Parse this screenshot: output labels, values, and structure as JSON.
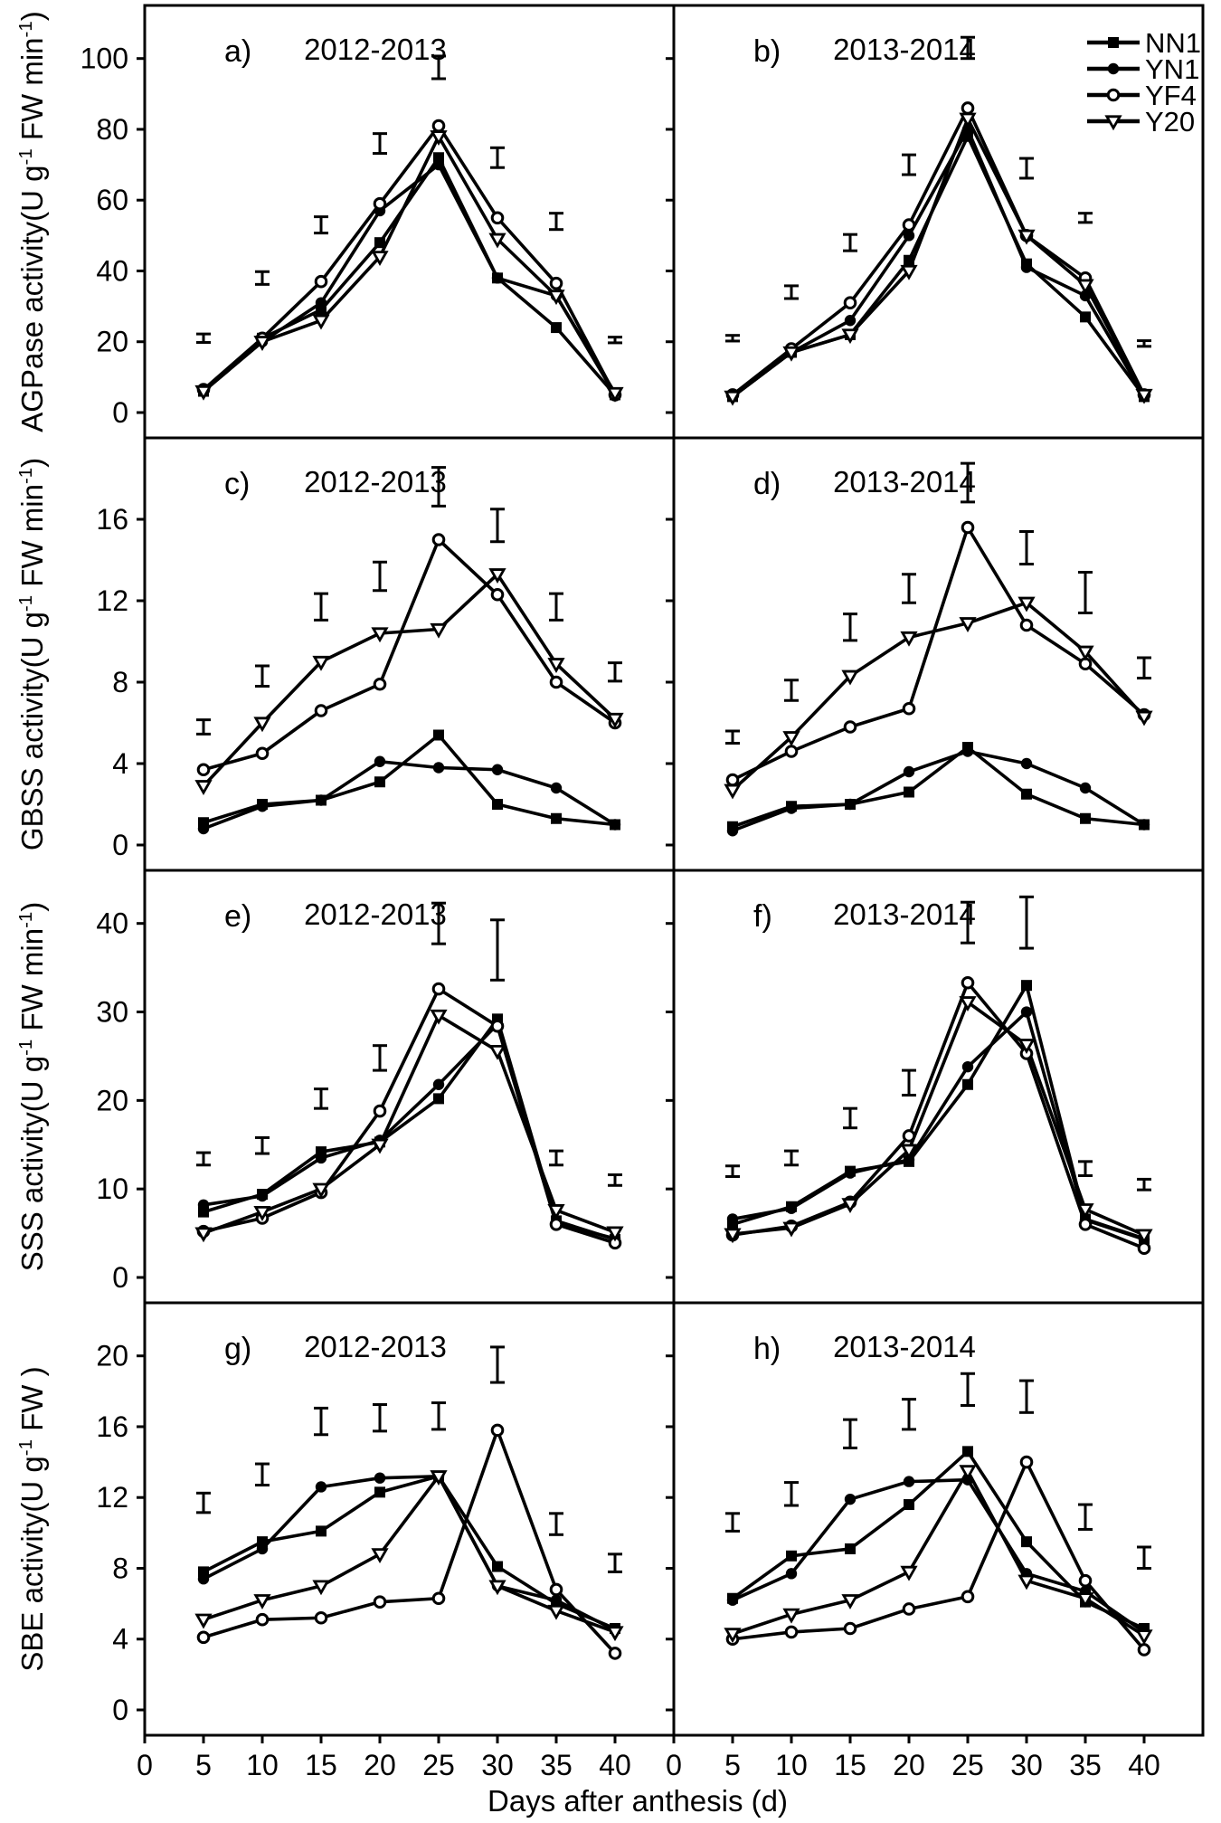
{
  "colors": {
    "foreground": "#000000",
    "background": "#ffffff"
  },
  "figure": {
    "x_axis_title": "Days after anthesis (d)",
    "x_ticks": [
      0,
      5,
      10,
      15,
      20,
      25,
      30,
      35,
      40
    ],
    "y_axis_titles": [
      {
        "row": 0,
        "segments": [
          {
            "t": "AGPase activity(U g"
          },
          {
            "sup": "-1"
          },
          {
            "t": " FW min"
          },
          {
            "sup": "-1"
          },
          {
            "t": ")"
          }
        ]
      },
      {
        "row": 1,
        "segments": [
          {
            "t": "GBSS activity(U g"
          },
          {
            "sup": "-1"
          },
          {
            "t": " FW min"
          },
          {
            "sup": "-1"
          },
          {
            "t": ")"
          }
        ]
      },
      {
        "row": 2,
        "segments": [
          {
            "t": "SSS activity(U g"
          },
          {
            "sup": "-1"
          },
          {
            "t": " FW min"
          },
          {
            "sup": "-1"
          },
          {
            "t": ")"
          }
        ]
      },
      {
        "row": 3,
        "segments": [
          {
            "t": "SBE activity(U g"
          },
          {
            "sup": "-1"
          },
          {
            "t": " FW )"
          }
        ]
      }
    ]
  },
  "legend": {
    "position": "top-right-of-panel-b",
    "items": [
      {
        "label": "NN1",
        "marker": "filled-square"
      },
      {
        "label": "YN1",
        "marker": "filled-circle"
      },
      {
        "label": "YF4",
        "marker": "open-circle"
      },
      {
        "label": "Y20",
        "marker": "open-triangle"
      }
    ]
  },
  "chart_data": [
    {
      "type": "line",
      "panel_label": "a)",
      "season": "2012-2013",
      "enzyme": "AGPase",
      "x": [
        5,
        10,
        15,
        20,
        25,
        30,
        35,
        40
      ],
      "ylim": [
        0,
        115
      ],
      "yticks": [
        0,
        20,
        40,
        60,
        80,
        100
      ],
      "series": [
        {
          "name": "NN1",
          "marker": "filled-square",
          "values": [
            6,
            21,
            29,
            48,
            72,
            38,
            24,
            5
          ]
        },
        {
          "name": "YN1",
          "marker": "filled-circle",
          "values": [
            6,
            20,
            31,
            57,
            70,
            38,
            33,
            5
          ]
        },
        {
          "name": "YF4",
          "marker": "open-circle",
          "values": [
            6.5,
            21,
            37,
            59,
            81,
            55,
            36.5,
            5
          ]
        },
        {
          "name": "Y20",
          "marker": "open-triangle",
          "values": [
            6,
            20,
            26,
            44,
            78,
            49,
            33,
            5.5
          ]
        }
      ],
      "error_bars": {
        "center": [
          21,
          38,
          53,
          76,
          97.5,
          72,
          54,
          20.5
        ],
        "half": [
          1.2,
          1.8,
          2.3,
          2.8,
          3.2,
          2.8,
          2.3,
          0.8
        ]
      }
    },
    {
      "type": "line",
      "panel_label": "b)",
      "season": "2013-2014",
      "enzyme": "AGPase",
      "x": [
        5,
        10,
        15,
        20,
        25,
        30,
        35,
        40
      ],
      "ylim": [
        0,
        115
      ],
      "yticks": [
        0,
        20,
        40,
        60,
        80,
        100
      ],
      "series": [
        {
          "name": "NN1",
          "marker": "filled-square",
          "values": [
            4.5,
            17,
            22,
            43,
            78,
            42,
            27,
            4.5
          ]
        },
        {
          "name": "YN1",
          "marker": "filled-circle",
          "values": [
            4.5,
            17,
            26,
            50,
            80,
            41,
            33,
            4.5
          ]
        },
        {
          "name": "YF4",
          "marker": "open-circle",
          "values": [
            5,
            18,
            31,
            53,
            86,
            50,
            38,
            5
          ]
        },
        {
          "name": "Y20",
          "marker": "open-triangle",
          "values": [
            4.5,
            17,
            22,
            40,
            83,
            50,
            36,
            5
          ]
        }
      ],
      "error_bars": {
        "center": [
          21,
          34,
          48,
          70,
          103,
          69,
          55,
          19.5
        ],
        "half": [
          0.8,
          1.8,
          2.3,
          2.8,
          3.0,
          2.8,
          1.3,
          0.8
        ]
      }
    },
    {
      "type": "line",
      "panel_label": "c)",
      "season": "2012-2013",
      "enzyme": "GBSS",
      "x": [
        5,
        10,
        15,
        20,
        25,
        30,
        35,
        40
      ],
      "ylim": [
        0,
        20
      ],
      "yticks": [
        0,
        4,
        8,
        12,
        16
      ],
      "series": [
        {
          "name": "NN1",
          "marker": "filled-square",
          "values": [
            1.1,
            2.0,
            2.2,
            3.1,
            5.4,
            2.0,
            1.3,
            1.0
          ]
        },
        {
          "name": "YN1",
          "marker": "filled-circle",
          "values": [
            0.8,
            1.9,
            2.2,
            4.1,
            3.8,
            3.7,
            2.8,
            1.0
          ]
        },
        {
          "name": "YF4",
          "marker": "open-circle",
          "values": [
            3.7,
            4.5,
            6.6,
            7.9,
            15.0,
            12.3,
            8.0,
            6.0
          ]
        },
        {
          "name": "Y20",
          "marker": "open-triangle",
          "values": [
            2.9,
            6.0,
            9.0,
            10.4,
            10.6,
            13.3,
            8.9,
            6.2
          ]
        }
      ],
      "error_bars": {
        "center": [
          5.8,
          8.3,
          11.7,
          13.2,
          17.6,
          15.7,
          11.7,
          8.5
        ],
        "half": [
          0.35,
          0.5,
          0.65,
          0.7,
          0.95,
          0.8,
          0.65,
          0.45
        ]
      }
    },
    {
      "type": "line",
      "panel_label": "d)",
      "season": "2013-2014",
      "enzyme": "GBSS",
      "x": [
        5,
        10,
        15,
        20,
        25,
        30,
        35,
        40
      ],
      "ylim": [
        0,
        20
      ],
      "yticks": [
        0,
        4,
        8,
        12,
        16
      ],
      "series": [
        {
          "name": "NN1",
          "marker": "filled-square",
          "values": [
            0.9,
            1.9,
            2.0,
            2.6,
            4.8,
            2.5,
            1.3,
            1.0
          ]
        },
        {
          "name": "YN1",
          "marker": "filled-circle",
          "values": [
            0.7,
            1.8,
            2.0,
            3.6,
            4.6,
            4.0,
            2.8,
            1.0
          ]
        },
        {
          "name": "YF4",
          "marker": "open-circle",
          "values": [
            3.2,
            4.6,
            5.8,
            6.7,
            15.6,
            10.8,
            8.9,
            6.4
          ]
        },
        {
          "name": "Y20",
          "marker": "open-triangle",
          "values": [
            2.7,
            5.3,
            8.3,
            10.2,
            10.9,
            11.9,
            9.5,
            6.3
          ]
        }
      ],
      "error_bars": {
        "center": [
          5.3,
          7.6,
          10.7,
          12.6,
          17.8,
          14.6,
          12.4,
          8.7
        ],
        "half": [
          0.3,
          0.5,
          0.65,
          0.7,
          0.95,
          0.8,
          1.0,
          0.5
        ]
      }
    },
    {
      "type": "line",
      "panel_label": "e)",
      "season": "2012-2013",
      "enzyme": "SSS",
      "x": [
        5,
        10,
        15,
        20,
        25,
        30,
        35,
        40
      ],
      "ylim": [
        0,
        46
      ],
      "yticks": [
        0,
        10,
        20,
        30,
        40
      ],
      "series": [
        {
          "name": "NN1",
          "marker": "filled-square",
          "values": [
            7.4,
            9.4,
            14.2,
            15.3,
            20.2,
            29.2,
            6.4,
            4.3
          ]
        },
        {
          "name": "YN1",
          "marker": "filled-circle",
          "values": [
            8.2,
            9.2,
            13.5,
            15.5,
            21.8,
            28.6,
            6.1,
            4.4
          ]
        },
        {
          "name": "YF4",
          "marker": "open-circle",
          "values": [
            5.2,
            6.7,
            9.6,
            18.8,
            32.6,
            28.4,
            6.0,
            3.9
          ]
        },
        {
          "name": "Y20",
          "marker": "open-triangle",
          "values": [
            5.0,
            7.4,
            10.0,
            15.0,
            29.6,
            25.6,
            7.6,
            5.1
          ]
        }
      ],
      "error_bars": {
        "center": [
          13.4,
          14.9,
          20.2,
          24.8,
          40.0,
          37.0,
          13.5,
          11.0
        ],
        "half": [
          0.7,
          0.9,
          1.1,
          1.4,
          2.3,
          3.4,
          0.8,
          0.6
        ]
      }
    },
    {
      "type": "line",
      "panel_label": "f)",
      "season": "2013-2014",
      "enzyme": "SSS",
      "x": [
        5,
        10,
        15,
        20,
        25,
        30,
        35,
        40
      ],
      "ylim": [
        0,
        46
      ],
      "yticks": [
        0,
        10,
        20,
        30,
        40
      ],
      "series": [
        {
          "name": "NN1",
          "marker": "filled-square",
          "values": [
            6.0,
            8.0,
            12.0,
            13.1,
            21.8,
            33.0,
            6.6,
            4.4
          ]
        },
        {
          "name": "YN1",
          "marker": "filled-circle",
          "values": [
            6.6,
            7.8,
            11.8,
            13.3,
            23.8,
            30.0,
            6.5,
            4.3
          ]
        },
        {
          "name": "YF4",
          "marker": "open-circle",
          "values": [
            4.8,
            5.8,
            8.5,
            16.0,
            33.3,
            25.3,
            6.0,
            3.3
          ]
        },
        {
          "name": "Y20",
          "marker": "open-triangle",
          "values": [
            4.9,
            5.6,
            8.3,
            14.4,
            31.1,
            26.3,
            7.7,
            4.8
          ]
        }
      ],
      "error_bars": {
        "center": [
          12.0,
          13.5,
          18.0,
          22.0,
          40.1,
          40.1,
          12.3,
          10.5
        ],
        "half": [
          0.6,
          0.8,
          1.1,
          1.4,
          2.3,
          2.9,
          0.8,
          0.6
        ]
      }
    },
    {
      "type": "line",
      "panel_label": "g)",
      "season": "2012-2013",
      "enzyme": "SBE",
      "x": [
        5,
        10,
        15,
        20,
        25,
        30,
        35,
        40
      ],
      "ylim": [
        0,
        23
      ],
      "yticks": [
        0,
        4,
        8,
        12,
        16,
        20
      ],
      "series": [
        {
          "name": "NN1",
          "marker": "filled-square",
          "values": [
            7.8,
            9.5,
            10.1,
            12.3,
            13.2,
            8.1,
            6.0,
            4.6
          ]
        },
        {
          "name": "YN1",
          "marker": "filled-circle",
          "values": [
            7.4,
            9.1,
            12.6,
            13.1,
            13.2,
            7.0,
            6.2,
            4.5
          ]
        },
        {
          "name": "YF4",
          "marker": "open-circle",
          "values": [
            4.1,
            5.1,
            5.2,
            6.1,
            6.3,
            15.8,
            6.8,
            3.2
          ]
        },
        {
          "name": "Y20",
          "marker": "open-triangle",
          "values": [
            5.1,
            6.2,
            7.0,
            8.8,
            13.2,
            7.0,
            5.6,
            4.4
          ]
        }
      ],
      "error_bars": {
        "center": [
          11.7,
          13.3,
          16.3,
          16.5,
          16.6,
          19.5,
          10.5,
          8.3
        ],
        "half": [
          0.55,
          0.6,
          0.75,
          0.75,
          0.75,
          1.0,
          0.6,
          0.5
        ]
      }
    },
    {
      "type": "line",
      "panel_label": "h)",
      "season": "2013-2014",
      "enzyme": "SBE",
      "x": [
        5,
        10,
        15,
        20,
        25,
        30,
        35,
        40
      ],
      "ylim": [
        0,
        23
      ],
      "yticks": [
        0,
        4,
        8,
        12,
        16,
        20
      ],
      "series": [
        {
          "name": "NN1",
          "marker": "filled-square",
          "values": [
            6.3,
            8.7,
            9.1,
            11.6,
            14.6,
            9.5,
            6.1,
            4.6
          ]
        },
        {
          "name": "YN1",
          "marker": "filled-circle",
          "values": [
            6.2,
            7.7,
            11.9,
            12.9,
            13.0,
            7.7,
            6.7,
            4.4
          ]
        },
        {
          "name": "YF4",
          "marker": "open-circle",
          "values": [
            4.0,
            4.4,
            4.6,
            5.7,
            6.4,
            14.0,
            7.3,
            3.4
          ]
        },
        {
          "name": "Y20",
          "marker": "open-triangle",
          "values": [
            4.3,
            5.4,
            6.2,
            7.8,
            13.5,
            7.3,
            6.3,
            4.2
          ]
        }
      ],
      "error_bars": {
        "center": [
          10.6,
          12.2,
          15.6,
          16.7,
          18.1,
          17.7,
          10.9,
          8.6
        ],
        "half": [
          0.5,
          0.65,
          0.8,
          0.85,
          0.9,
          0.9,
          0.7,
          0.6
        ]
      }
    }
  ]
}
